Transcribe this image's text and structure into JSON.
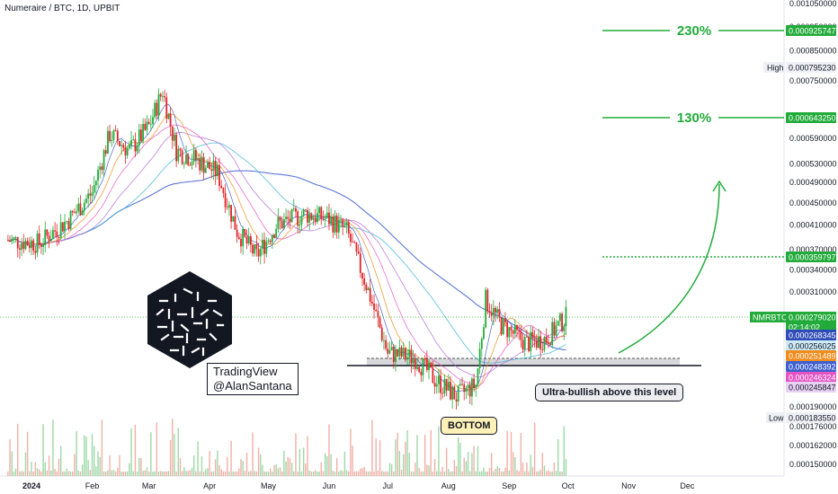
{
  "header": {
    "title": "Numeraire / BTC, 1D, UPBIT"
  },
  "watermark": {
    "line1": "TradingView",
    "line2": "@AlanSantana"
  },
  "annotations": {
    "bottom": "BOTTOM",
    "ultra": "Ultra-bullish above this level",
    "target1": "130%",
    "target2": "230%"
  },
  "colors": {
    "up": "#22ab3a",
    "down": "#e0252a",
    "target": "#22ab3a",
    "price_tag": "#22ab3a",
    "ma_blue": "#3f5fd0",
    "ma_teal": "#3ab0d6",
    "ma_orange": "#f08c1c",
    "ma_navy": "#2e4bb8",
    "ma_pink": "#e654c4",
    "ma_violet": "#b06bd8"
  },
  "chart_data": {
    "type": "candlestick",
    "symbol": "NMRBTC",
    "x_ticks": [
      "2024",
      "Feb",
      "Mar",
      "Apr",
      "May",
      "Jun",
      "Jul",
      "Aug",
      "Sep",
      "Oct",
      "Nov",
      "Dec"
    ],
    "y_ticks": [
      "0.001050000",
      "0.000950000",
      "0.000850000",
      "0.000750000",
      "0.000590000",
      "0.000530000",
      "0.000490000",
      "0.000450000",
      "0.000410000",
      "0.000370000",
      "0.000340000",
      "0.000310000",
      "0.000190000",
      "0.000176000",
      "0.000162000",
      "0.000150000"
    ],
    "y_scale": "log",
    "current_price": {
      "label": "NMRBTC",
      "value": "0.000279020",
      "countdown": "02:14:02"
    },
    "high": {
      "label": "High",
      "value": "0.000795230"
    },
    "low": {
      "label": "Low",
      "value": "0.000183550"
    },
    "target_levels": [
      "0.000925747",
      "0.000643250",
      "0.000359797"
    ],
    "ma_values": [
      {
        "value": "0.000268345",
        "color_key": "ma_navy"
      },
      {
        "value": "0.000256025",
        "color_key": "ma_teal"
      },
      {
        "value": "0.000251489",
        "color_key": "ma_orange"
      },
      {
        "value": "0.000248392",
        "color_key": "ma_blue"
      },
      {
        "value": "0.000246324",
        "color_key": "ma_pink"
      },
      {
        "value": "0.000245847",
        "color_key": "ma_violet"
      }
    ],
    "price_path": [
      {
        "date": "2023-12-20",
        "close": 0.000385
      },
      {
        "date": "2024-01-05",
        "close": 0.00038
      },
      {
        "date": "2024-01-20",
        "close": 0.00042
      },
      {
        "date": "2024-02-01",
        "close": 0.00047
      },
      {
        "date": "2024-02-10",
        "close": 0.0006
      },
      {
        "date": "2024-02-20",
        "close": 0.00056
      },
      {
        "date": "2024-03-01",
        "close": 0.00062
      },
      {
        "date": "2024-03-08",
        "close": 0.00072
      },
      {
        "date": "2024-03-15",
        "close": 0.00056
      },
      {
        "date": "2024-03-25",
        "close": 0.00054
      },
      {
        "date": "2024-04-05",
        "close": 0.00051
      },
      {
        "date": "2024-04-15",
        "close": 0.0004
      },
      {
        "date": "2024-04-25",
        "close": 0.00036
      },
      {
        "date": "2024-05-05",
        "close": 0.00041
      },
      {
        "date": "2024-05-20",
        "close": 0.00043
      },
      {
        "date": "2024-06-01",
        "close": 0.00042
      },
      {
        "date": "2024-06-10",
        "close": 0.0004
      },
      {
        "date": "2024-06-20",
        "close": 0.00032
      },
      {
        "date": "2024-07-01",
        "close": 0.00024
      },
      {
        "date": "2024-07-15",
        "close": 0.000235
      },
      {
        "date": "2024-07-25",
        "close": 0.000215
      },
      {
        "date": "2024-08-05",
        "close": 0.0002
      },
      {
        "date": "2024-08-15",
        "close": 0.00021
      },
      {
        "date": "2024-08-20",
        "close": 0.0003
      },
      {
        "date": "2024-08-28",
        "close": 0.00027
      },
      {
        "date": "2024-09-10",
        "close": 0.00025
      },
      {
        "date": "2024-09-20",
        "close": 0.000255
      },
      {
        "date": "2024-09-30",
        "close": 0.000279
      }
    ]
  }
}
